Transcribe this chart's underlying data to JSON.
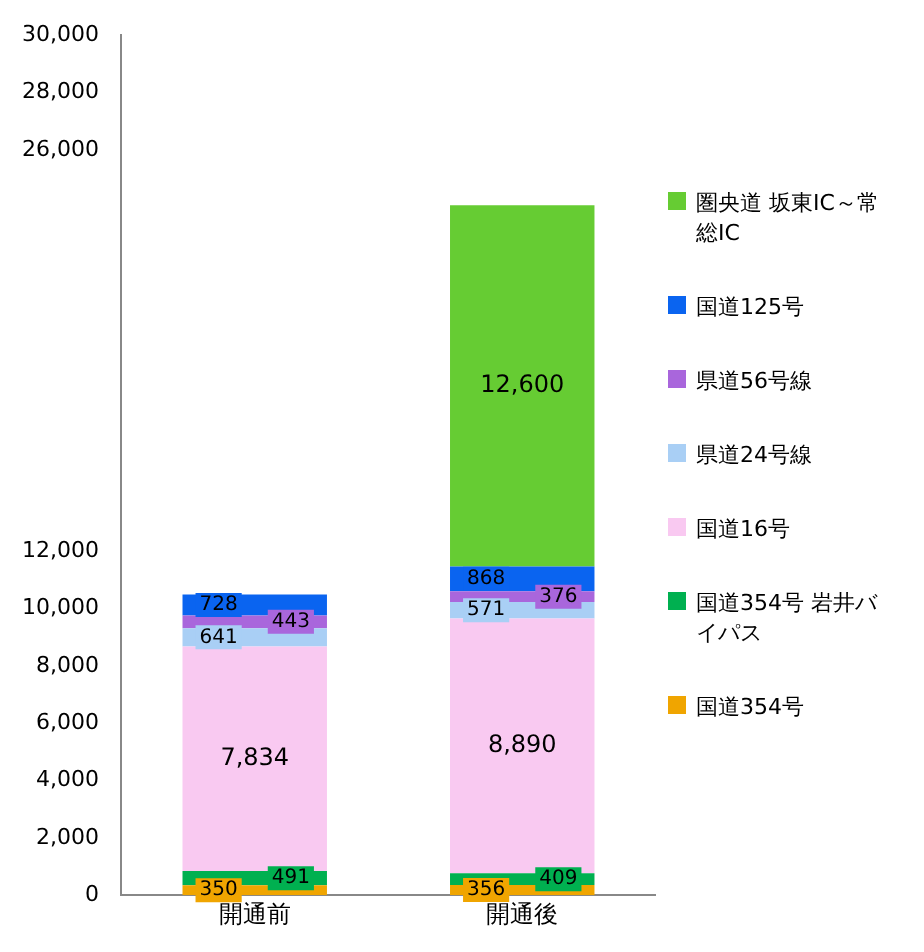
{
  "chart_data": {
    "type": "bar",
    "stacked": true,
    "categories": [
      "開通前",
      "開通後"
    ],
    "series": [
      {
        "name": "国道354号",
        "color": "#f0a500",
        "values": [
          350,
          356
        ]
      },
      {
        "name": "国道354号 岩井バイパス",
        "color": "#00b050",
        "values": [
          491,
          409
        ]
      },
      {
        "name": "国道16号",
        "color": "#f9c9f1",
        "values": [
          7834,
          8890
        ],
        "value_labels": [
          "7,834",
          "8,890"
        ]
      },
      {
        "name": "県道24号線",
        "color": "#a9cff5",
        "values": [
          641,
          571
        ]
      },
      {
        "name": "県道56号線",
        "color": "#a966dc",
        "values": [
          443,
          376
        ]
      },
      {
        "name": "国道125号",
        "color": "#0a64f0",
        "values": [
          728,
          868
        ]
      },
      {
        "name": "圏央道 坂東IC～常総IC",
        "color": "#66cc33",
        "values": [
          null,
          12600
        ],
        "value_labels": [
          null,
          "12,600"
        ]
      }
    ],
    "ylim": [
      0,
      30000
    ],
    "yticks": [
      0,
      {
        "value": 2000,
        "label": "2,000"
      },
      {
        "value": 4000,
        "label": "4,000"
      },
      {
        "value": 6000,
        "label": "6,000"
      },
      {
        "value": 8000,
        "label": "8,000"
      },
      {
        "value": 10000,
        "label": "10,000"
      },
      {
        "value": 12000,
        "label": "12,000"
      },
      {
        "value": 26000,
        "label": "26,000"
      },
      {
        "value": 28000,
        "label": "28,000"
      },
      {
        "value": 30000,
        "label": "30,000"
      }
    ],
    "grid": false,
    "legend": "right",
    "data_labels": true
  }
}
